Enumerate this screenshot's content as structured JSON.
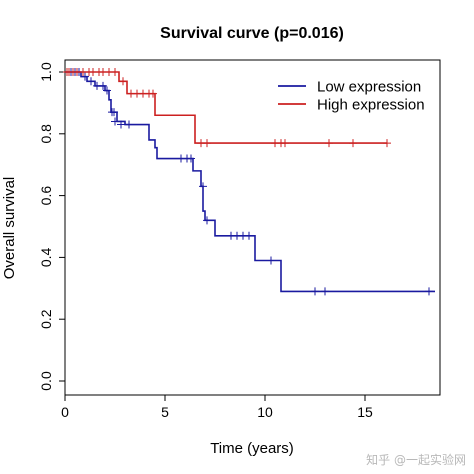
{
  "chart_data": {
    "type": "line",
    "title": "Survival curve (p=0.016)",
    "xlabel": "Time (years)",
    "ylabel": "Overall survival",
    "xlim": [
      0,
      18.5
    ],
    "ylim": [
      0,
      1.0
    ],
    "xticks": [
      "0",
      "5",
      "10",
      "15"
    ],
    "xtick_values": [
      0,
      5,
      10,
      15
    ],
    "yticks": [
      "0.0",
      "0.2",
      "0.4",
      "0.6",
      "0.8",
      "1.0"
    ],
    "ytick_values": [
      0.0,
      0.2,
      0.4,
      0.6,
      0.8,
      1.0
    ],
    "grid": false,
    "legend_position": "top-right",
    "series": [
      {
        "name": "Low expression",
        "color": "#1a1aa0",
        "steps": [
          [
            0,
            1.0
          ],
          [
            0.8,
            0.985
          ],
          [
            1.1,
            0.97
          ],
          [
            1.5,
            0.955
          ],
          [
            2.0,
            0.94
          ],
          [
            2.2,
            0.91
          ],
          [
            2.3,
            0.87
          ],
          [
            2.6,
            0.84
          ],
          [
            3.0,
            0.83
          ],
          [
            4.2,
            0.78
          ],
          [
            4.5,
            0.755
          ],
          [
            4.6,
            0.72
          ],
          [
            6.4,
            0.68
          ],
          [
            6.8,
            0.63
          ],
          [
            6.9,
            0.55
          ],
          [
            7.0,
            0.52
          ],
          [
            7.5,
            0.47
          ],
          [
            9.5,
            0.39
          ],
          [
            10.8,
            0.29
          ],
          [
            18.5,
            0.29
          ]
        ],
        "censored": [
          [
            0.3,
            1.0
          ],
          [
            0.5,
            1.0
          ],
          [
            0.7,
            1.0
          ],
          [
            1.0,
            0.985
          ],
          [
            1.3,
            0.97
          ],
          [
            1.6,
            0.955
          ],
          [
            1.9,
            0.955
          ],
          [
            2.1,
            0.94
          ],
          [
            2.35,
            0.87
          ],
          [
            2.45,
            0.87
          ],
          [
            2.5,
            0.84
          ],
          [
            2.8,
            0.83
          ],
          [
            3.2,
            0.83
          ],
          [
            5.8,
            0.72
          ],
          [
            6.1,
            0.72
          ],
          [
            6.3,
            0.72
          ],
          [
            6.9,
            0.63
          ],
          [
            7.1,
            0.52
          ],
          [
            8.3,
            0.47
          ],
          [
            8.6,
            0.47
          ],
          [
            8.9,
            0.47
          ],
          [
            9.2,
            0.47
          ],
          [
            10.3,
            0.39
          ],
          [
            12.5,
            0.29
          ],
          [
            13.0,
            0.29
          ],
          [
            18.2,
            0.29
          ]
        ]
      },
      {
        "name": "High expression",
        "color": "#cc2020",
        "steps": [
          [
            0,
            1.0
          ],
          [
            2.7,
            0.97
          ],
          [
            3.1,
            0.93
          ],
          [
            4.5,
            0.86
          ],
          [
            6.5,
            0.77
          ],
          [
            16.1,
            0.77
          ]
        ],
        "censored": [
          [
            0.1,
            1.0
          ],
          [
            0.2,
            1.0
          ],
          [
            0.4,
            1.0
          ],
          [
            0.6,
            1.0
          ],
          [
            0.9,
            1.0
          ],
          [
            1.2,
            1.0
          ],
          [
            1.4,
            1.0
          ],
          [
            1.7,
            1.0
          ],
          [
            1.9,
            1.0
          ],
          [
            2.2,
            1.0
          ],
          [
            2.5,
            1.0
          ],
          [
            2.9,
            0.97
          ],
          [
            3.3,
            0.93
          ],
          [
            3.6,
            0.93
          ],
          [
            3.9,
            0.93
          ],
          [
            4.2,
            0.93
          ],
          [
            4.4,
            0.93
          ],
          [
            6.8,
            0.77
          ],
          [
            7.1,
            0.77
          ],
          [
            10.5,
            0.77
          ],
          [
            10.8,
            0.77
          ],
          [
            11.0,
            0.77
          ],
          [
            13.2,
            0.77
          ],
          [
            14.4,
            0.77
          ],
          [
            16.1,
            0.77
          ]
        ]
      }
    ]
  },
  "watermark": "知乎 @一起实验网"
}
